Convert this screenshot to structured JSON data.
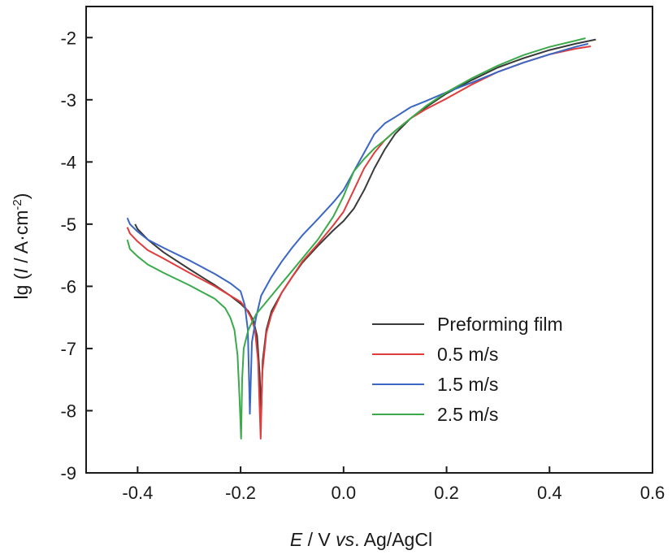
{
  "chart_data": {
    "type": "line",
    "title": "",
    "xlabel": {
      "parts": [
        {
          "text": "E",
          "italic": true
        },
        {
          "text": " / V ",
          "italic": false
        },
        {
          "text": "vs",
          "italic": true
        },
        {
          "text": ". Ag/AgCl",
          "italic": false
        }
      ]
    },
    "ylabel": {
      "parts": [
        {
          "text": "lg (",
          "italic": false,
          "sup": false
        },
        {
          "text": "I",
          "italic": true,
          "sup": false
        },
        {
          "text": " / A·cm",
          "italic": false,
          "sup": false
        },
        {
          "text": "-2",
          "italic": false,
          "sup": true
        },
        {
          "text": ")",
          "italic": false,
          "sup": false
        }
      ]
    },
    "xlim": [
      -0.5,
      0.6
    ],
    "ylim": [
      -9,
      -1.5
    ],
    "xticks": [
      -0.4,
      -0.2,
      0.0,
      0.2,
      0.4,
      0.6
    ],
    "xtick_labels": [
      "-0.4",
      "-0.2",
      "0.0",
      "0.2",
      "0.4",
      "0.6"
    ],
    "yticks": [
      -9,
      -8,
      -7,
      -6,
      -5,
      -4,
      -3,
      -2
    ],
    "ytick_labels": [
      "-9",
      "-8",
      "-7",
      "-6",
      "-5",
      "-4",
      "-3",
      "-2"
    ],
    "grid": false,
    "legend_position": "lower-right",
    "series": [
      {
        "name": "Preforming film",
        "color": "#3a3a3a",
        "points": [
          [
            -0.405,
            -5.0
          ],
          [
            -0.4,
            -5.08
          ],
          [
            -0.38,
            -5.25
          ],
          [
            -0.35,
            -5.45
          ],
          [
            -0.3,
            -5.72
          ],
          [
            -0.25,
            -5.98
          ],
          [
            -0.22,
            -6.15
          ],
          [
            -0.2,
            -6.28
          ],
          [
            -0.185,
            -6.4
          ],
          [
            -0.175,
            -6.55
          ],
          [
            -0.168,
            -6.8
          ],
          [
            -0.163,
            -7.4
          ],
          [
            -0.16,
            -8.05
          ],
          [
            -0.157,
            -7.2
          ],
          [
            -0.15,
            -6.7
          ],
          [
            -0.14,
            -6.4
          ],
          [
            -0.12,
            -6.1
          ],
          [
            -0.1,
            -5.85
          ],
          [
            -0.08,
            -5.62
          ],
          [
            -0.05,
            -5.35
          ],
          [
            -0.02,
            -5.1
          ],
          [
            0.0,
            -4.95
          ],
          [
            0.02,
            -4.75
          ],
          [
            0.04,
            -4.45
          ],
          [
            0.06,
            -4.1
          ],
          [
            0.08,
            -3.8
          ],
          [
            0.1,
            -3.55
          ],
          [
            0.13,
            -3.3
          ],
          [
            0.16,
            -3.12
          ],
          [
            0.2,
            -2.9
          ],
          [
            0.25,
            -2.68
          ],
          [
            0.3,
            -2.48
          ],
          [
            0.35,
            -2.33
          ],
          [
            0.4,
            -2.2
          ],
          [
            0.45,
            -2.1
          ],
          [
            0.49,
            -2.03
          ]
        ]
      },
      {
        "name": "0.5 m/s",
        "color": "#e03c3c",
        "points": [
          [
            -0.42,
            -5.05
          ],
          [
            -0.415,
            -5.15
          ],
          [
            -0.4,
            -5.28
          ],
          [
            -0.38,
            -5.42
          ],
          [
            -0.35,
            -5.55
          ],
          [
            -0.3,
            -5.78
          ],
          [
            -0.25,
            -6.0
          ],
          [
            -0.22,
            -6.15
          ],
          [
            -0.2,
            -6.25
          ],
          [
            -0.19,
            -6.35
          ],
          [
            -0.18,
            -6.5
          ],
          [
            -0.172,
            -6.7
          ],
          [
            -0.166,
            -7.2
          ],
          [
            -0.161,
            -8.45
          ],
          [
            -0.158,
            -7.4
          ],
          [
            -0.15,
            -6.75
          ],
          [
            -0.14,
            -6.45
          ],
          [
            -0.12,
            -6.1
          ],
          [
            -0.1,
            -5.85
          ],
          [
            -0.08,
            -5.6
          ],
          [
            -0.05,
            -5.32
          ],
          [
            -0.02,
            -5.02
          ],
          [
            0.0,
            -4.8
          ],
          [
            0.02,
            -4.45
          ],
          [
            0.04,
            -4.1
          ],
          [
            0.06,
            -3.85
          ],
          [
            0.08,
            -3.65
          ],
          [
            0.1,
            -3.5
          ],
          [
            0.13,
            -3.3
          ],
          [
            0.16,
            -3.15
          ],
          [
            0.2,
            -2.98
          ],
          [
            0.25,
            -2.75
          ],
          [
            0.3,
            -2.55
          ],
          [
            0.35,
            -2.4
          ],
          [
            0.4,
            -2.27
          ],
          [
            0.45,
            -2.18
          ],
          [
            0.48,
            -2.14
          ]
        ]
      },
      {
        "name": "1.5 m/s",
        "color": "#3a66c4",
        "points": [
          [
            -0.42,
            -4.9
          ],
          [
            -0.415,
            -5.0
          ],
          [
            -0.4,
            -5.12
          ],
          [
            -0.38,
            -5.25
          ],
          [
            -0.35,
            -5.38
          ],
          [
            -0.3,
            -5.58
          ],
          [
            -0.25,
            -5.8
          ],
          [
            -0.22,
            -5.95
          ],
          [
            -0.2,
            -6.08
          ],
          [
            -0.192,
            -6.3
          ],
          [
            -0.186,
            -6.7
          ],
          [
            -0.182,
            -8.05
          ],
          [
            -0.178,
            -6.9
          ],
          [
            -0.17,
            -6.5
          ],
          [
            -0.16,
            -6.15
          ],
          [
            -0.14,
            -5.85
          ],
          [
            -0.12,
            -5.6
          ],
          [
            -0.1,
            -5.38
          ],
          [
            -0.08,
            -5.18
          ],
          [
            -0.05,
            -4.92
          ],
          [
            -0.02,
            -4.65
          ],
          [
            0.0,
            -4.45
          ],
          [
            0.02,
            -4.15
          ],
          [
            0.04,
            -3.85
          ],
          [
            0.06,
            -3.55
          ],
          [
            0.08,
            -3.38
          ],
          [
            0.1,
            -3.28
          ],
          [
            0.13,
            -3.12
          ],
          [
            0.16,
            -3.02
          ],
          [
            0.2,
            -2.88
          ],
          [
            0.25,
            -2.72
          ],
          [
            0.3,
            -2.55
          ],
          [
            0.35,
            -2.4
          ],
          [
            0.4,
            -2.27
          ],
          [
            0.45,
            -2.15
          ],
          [
            0.475,
            -2.1
          ]
        ]
      },
      {
        "name": "2.5 m/s",
        "color": "#3aaa4a",
        "points": [
          [
            -0.42,
            -5.25
          ],
          [
            -0.415,
            -5.4
          ],
          [
            -0.4,
            -5.52
          ],
          [
            -0.38,
            -5.65
          ],
          [
            -0.35,
            -5.78
          ],
          [
            -0.3,
            -5.98
          ],
          [
            -0.25,
            -6.2
          ],
          [
            -0.23,
            -6.35
          ],
          [
            -0.22,
            -6.5
          ],
          [
            -0.212,
            -6.7
          ],
          [
            -0.206,
            -7.1
          ],
          [
            -0.202,
            -7.8
          ],
          [
            -0.199,
            -8.45
          ],
          [
            -0.197,
            -7.5
          ],
          [
            -0.194,
            -7.0
          ],
          [
            -0.185,
            -6.7
          ],
          [
            -0.17,
            -6.45
          ],
          [
            -0.15,
            -6.25
          ],
          [
            -0.13,
            -6.05
          ],
          [
            -0.1,
            -5.75
          ],
          [
            -0.08,
            -5.55
          ],
          [
            -0.05,
            -5.25
          ],
          [
            -0.02,
            -4.88
          ],
          [
            0.0,
            -4.55
          ],
          [
            0.02,
            -4.15
          ],
          [
            0.04,
            -3.95
          ],
          [
            0.06,
            -3.78
          ],
          [
            0.08,
            -3.65
          ],
          [
            0.1,
            -3.5
          ],
          [
            0.13,
            -3.3
          ],
          [
            0.16,
            -3.1
          ],
          [
            0.2,
            -2.88
          ],
          [
            0.25,
            -2.65
          ],
          [
            0.3,
            -2.45
          ],
          [
            0.35,
            -2.28
          ],
          [
            0.4,
            -2.15
          ],
          [
            0.45,
            -2.05
          ],
          [
            0.47,
            -2.01
          ]
        ]
      }
    ]
  }
}
